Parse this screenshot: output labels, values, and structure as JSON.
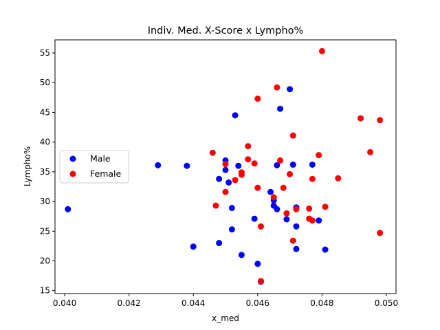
{
  "chart_data": {
    "type": "scatter",
    "title": "Indiv. Med. X-Score x Lympho%",
    "xlabel": "x_med",
    "ylabel": "Lympho%",
    "xlim": [
      0.0397,
      0.0503
    ],
    "ylim": [
      14.5,
      57.2
    ],
    "xticks": [
      0.04,
      0.042,
      0.044,
      0.046,
      0.048,
      0.05
    ],
    "xtick_labels": [
      "0.040",
      "0.042",
      "0.044",
      "0.046",
      "0.048",
      "0.050"
    ],
    "yticks": [
      15,
      20,
      25,
      30,
      35,
      40,
      45,
      50,
      55
    ],
    "ytick_labels": [
      "15",
      "20",
      "25",
      "30",
      "35",
      "40",
      "45",
      "50",
      "55"
    ],
    "grid": false,
    "legend_position": "center-left",
    "series": [
      {
        "name": "Male",
        "color": "#0000ff",
        "points": [
          [
            0.0401,
            28.7
          ],
          [
            0.0429,
            36.1
          ],
          [
            0.0438,
            36.0
          ],
          [
            0.044,
            22.4
          ],
          [
            0.0448,
            33.8
          ],
          [
            0.0448,
            23.0
          ],
          [
            0.045,
            36.9
          ],
          [
            0.045,
            35.3
          ],
          [
            0.0451,
            33.2
          ],
          [
            0.0452,
            25.3
          ],
          [
            0.0452,
            28.9
          ],
          [
            0.0453,
            44.5
          ],
          [
            0.0454,
            36.0
          ],
          [
            0.0455,
            21.0
          ],
          [
            0.0459,
            27.1
          ],
          [
            0.046,
            19.5
          ],
          [
            0.0461,
            16.5
          ],
          [
            0.0464,
            31.6
          ],
          [
            0.0465,
            29.3
          ],
          [
            0.0465,
            30.2
          ],
          [
            0.0466,
            36.1
          ],
          [
            0.0466,
            28.7
          ],
          [
            0.0467,
            45.6
          ],
          [
            0.0469,
            27.0
          ],
          [
            0.047,
            48.9
          ],
          [
            0.0471,
            36.2
          ],
          [
            0.0472,
            29.0
          ],
          [
            0.0472,
            22.0
          ],
          [
            0.0472,
            25.8
          ],
          [
            0.0477,
            36.2
          ],
          [
            0.0479,
            26.8
          ],
          [
            0.0481,
            21.9
          ]
        ]
      },
      {
        "name": "Female",
        "color": "#ff0000",
        "points": [
          [
            0.0446,
            38.2
          ],
          [
            0.0447,
            29.3
          ],
          [
            0.045,
            36.3
          ],
          [
            0.045,
            31.6
          ],
          [
            0.0453,
            33.6
          ],
          [
            0.0455,
            34.5
          ],
          [
            0.0455,
            34.9
          ],
          [
            0.0457,
            39.3
          ],
          [
            0.0457,
            37.1
          ],
          [
            0.0459,
            36.4
          ],
          [
            0.046,
            47.3
          ],
          [
            0.046,
            32.3
          ],
          [
            0.0461,
            25.8
          ],
          [
            0.0461,
            16.6
          ],
          [
            0.0465,
            30.7
          ],
          [
            0.0466,
            49.2
          ],
          [
            0.0467,
            36.9
          ],
          [
            0.0468,
            32.3
          ],
          [
            0.0469,
            28.0
          ],
          [
            0.047,
            34.6
          ],
          [
            0.0471,
            41.1
          ],
          [
            0.0471,
            23.4
          ],
          [
            0.0472,
            28.7
          ],
          [
            0.0476,
            28.8
          ],
          [
            0.0476,
            27.1
          ],
          [
            0.0477,
            26.8
          ],
          [
            0.0477,
            33.8
          ],
          [
            0.0479,
            37.8
          ],
          [
            0.048,
            55.3
          ],
          [
            0.0481,
            29.1
          ],
          [
            0.0485,
            33.9
          ],
          [
            0.0492,
            44.0
          ],
          [
            0.0495,
            38.3
          ],
          [
            0.0498,
            43.7
          ],
          [
            0.0498,
            24.7
          ]
        ]
      }
    ]
  }
}
